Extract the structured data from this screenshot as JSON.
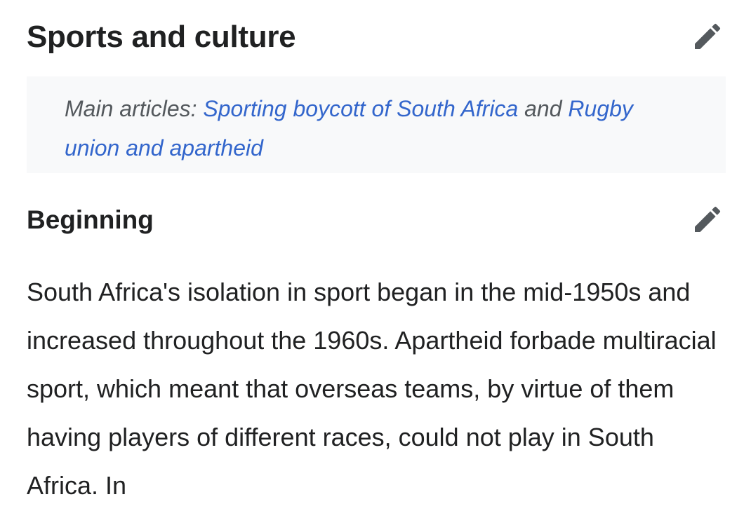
{
  "section": {
    "title": "Sports and culture",
    "edit_icon": "pencil-icon"
  },
  "hatnote": {
    "prefix": "Main articles: ",
    "link1": "Sporting boycott of South Africa",
    "conjunction": " and ",
    "link2": "Rugby union and apartheid"
  },
  "subsection": {
    "title": "Beginning",
    "edit_icon": "pencil-icon"
  },
  "paragraph": {
    "text": "South Africa's isolation in sport began in the mid-1950s and increased throughout the 1960s. Apartheid forbade multiracial sport, which meant that overseas teams, by virtue of them having players of different races, could not play in South Africa. In"
  },
  "colors": {
    "link": "#3366cc",
    "text": "#202122",
    "hatnote_text": "#54595d",
    "hatnote_bg": "#f8f9fa",
    "icon": "#54595d"
  }
}
